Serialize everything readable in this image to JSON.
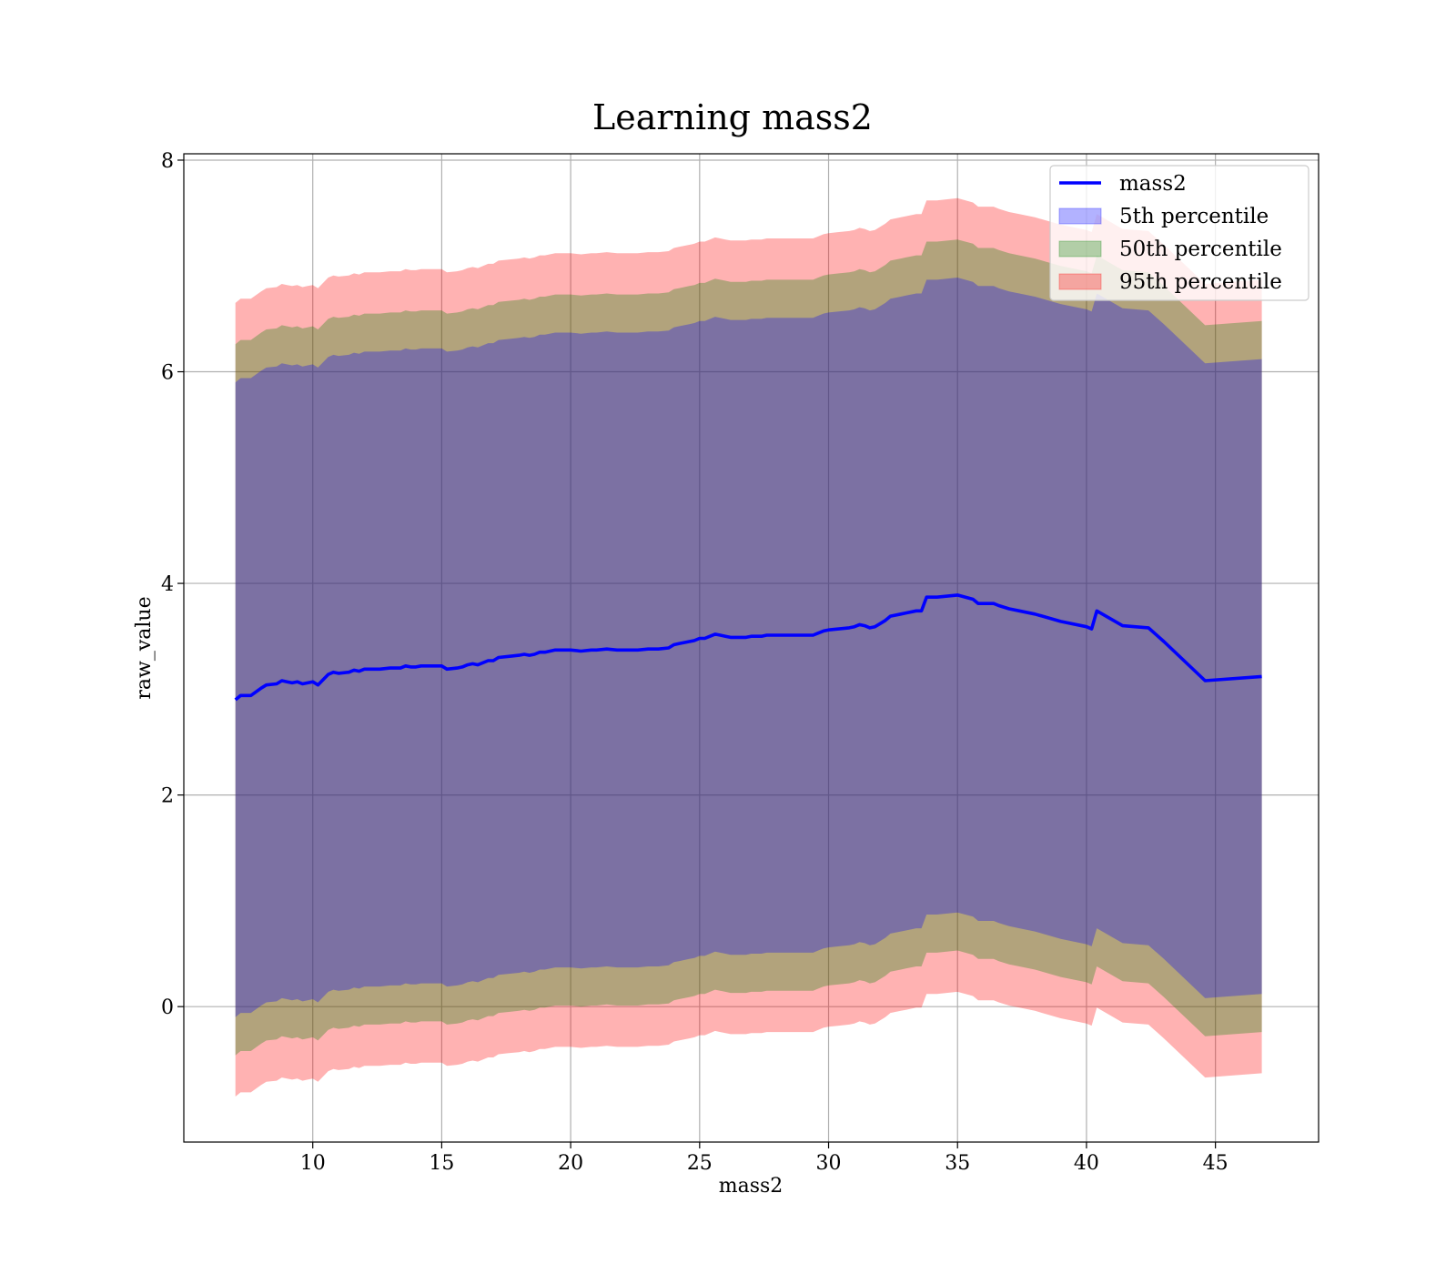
{
  "chart_data": {
    "type": "area",
    "title": "Learning mass2",
    "xlabel": "mass2",
    "ylabel": "raw_value",
    "xlim": [
      5,
      49
    ],
    "ylim": [
      -1.28,
      8.06
    ],
    "xticks": [
      10,
      15,
      20,
      25,
      30,
      35,
      40,
      45
    ],
    "yticks": [
      0,
      2,
      4,
      6,
      8
    ],
    "grid": true,
    "legend_position": "top-right",
    "legend": [
      {
        "label": "mass2",
        "kind": "line",
        "color": "#0000ff"
      },
      {
        "label": "5th percentile",
        "kind": "patch",
        "color": "#0000ff"
      },
      {
        "label": "50th percentile",
        "kind": "patch",
        "color": "#008000"
      },
      {
        "label": "95th percentile",
        "kind": "patch",
        "color": "#ff0000"
      }
    ],
    "x": [
      7.0,
      7.2,
      7.6,
      8.0,
      8.2,
      8.6,
      8.8,
      9.0,
      9.2,
      9.4,
      9.6,
      9.8,
      10.0,
      10.2,
      10.6,
      10.8,
      11.0,
      11.4,
      11.6,
      11.8,
      12.0,
      12.2,
      12.6,
      13.0,
      13.4,
      13.6,
      13.8,
      14.0,
      14.2,
      14.4,
      14.8,
      15.0,
      15.2,
      15.6,
      15.8,
      16.0,
      16.2,
      16.4,
      16.8,
      17.0,
      17.2,
      17.6,
      18.0,
      18.2,
      18.4,
      18.6,
      18.8,
      19.0,
      19.4,
      19.6,
      20.0,
      20.4,
      20.8,
      21.0,
      21.4,
      21.8,
      22.0,
      22.2,
      22.6,
      23.0,
      23.4,
      23.8,
      24.0,
      24.2,
      24.6,
      24.8,
      25.0,
      25.2,
      25.4,
      25.6,
      25.8,
      26.0,
      26.2,
      26.4,
      26.6,
      26.8,
      27.0,
      27.2,
      27.4,
      27.6,
      27.8,
      28.0,
      28.2,
      28.6,
      29.0,
      29.4,
      29.6,
      29.8,
      30.0,
      30.4,
      30.8,
      31.0,
      31.2,
      31.4,
      31.6,
      31.8,
      32.0,
      32.2,
      32.4,
      32.8,
      33.0,
      33.4,
      33.6,
      33.8,
      34.2,
      35.0,
      35.6,
      35.8,
      36.0,
      36.4,
      36.6,
      37.0,
      37.4,
      38.0,
      39.0,
      40.0,
      40.2,
      40.4,
      41.4,
      42.4,
      43.0,
      44.6,
      46.8
    ],
    "series": [
      {
        "name": "mass2",
        "values": [
          2.9,
          2.94,
          2.94,
          3.01,
          3.04,
          3.05,
          3.08,
          3.07,
          3.06,
          3.07,
          3.05,
          3.06,
          3.07,
          3.04,
          3.14,
          3.16,
          3.15,
          3.16,
          3.18,
          3.17,
          3.19,
          3.19,
          3.19,
          3.2,
          3.2,
          3.22,
          3.21,
          3.21,
          3.22,
          3.22,
          3.22,
          3.22,
          3.19,
          3.2,
          3.21,
          3.23,
          3.24,
          3.23,
          3.27,
          3.27,
          3.3,
          3.31,
          3.32,
          3.33,
          3.32,
          3.33,
          3.35,
          3.35,
          3.37,
          3.37,
          3.37,
          3.36,
          3.37,
          3.37,
          3.38,
          3.37,
          3.37,
          3.37,
          3.37,
          3.38,
          3.38,
          3.39,
          3.42,
          3.43,
          3.45,
          3.46,
          3.48,
          3.48,
          3.5,
          3.52,
          3.51,
          3.5,
          3.49,
          3.49,
          3.49,
          3.49,
          3.5,
          3.5,
          3.5,
          3.51,
          3.51,
          3.51,
          3.51,
          3.51,
          3.51,
          3.51,
          3.53,
          3.55,
          3.56,
          3.57,
          3.58,
          3.59,
          3.61,
          3.6,
          3.58,
          3.59,
          3.62,
          3.65,
          3.69,
          3.71,
          3.72,
          3.74,
          3.74,
          3.87,
          3.87,
          3.89,
          3.85,
          3.81,
          3.81,
          3.81,
          3.79,
          3.76,
          3.74,
          3.71,
          3.64,
          3.59,
          3.57,
          3.74,
          3.6,
          3.58,
          3.45,
          3.08,
          3.12
        ]
      },
      {
        "name": "5th percentile",
        "lower": [
          -0.1,
          -0.06,
          -0.06,
          0.01,
          0.04,
          0.05,
          0.08,
          0.07,
          0.06,
          0.07,
          0.05,
          0.06,
          0.07,
          0.04,
          0.14,
          0.16,
          0.15,
          0.16,
          0.18,
          0.17,
          0.19,
          0.19,
          0.19,
          0.2,
          0.2,
          0.22,
          0.21,
          0.21,
          0.22,
          0.22,
          0.22,
          0.22,
          0.19,
          0.2,
          0.21,
          0.23,
          0.24,
          0.23,
          0.27,
          0.27,
          0.3,
          0.31,
          0.32,
          0.33,
          0.32,
          0.33,
          0.35,
          0.35,
          0.37,
          0.37,
          0.37,
          0.36,
          0.37,
          0.37,
          0.38,
          0.37,
          0.37,
          0.37,
          0.37,
          0.38,
          0.38,
          0.39,
          0.42,
          0.43,
          0.45,
          0.46,
          0.48,
          0.48,
          0.5,
          0.52,
          0.51,
          0.5,
          0.49,
          0.49,
          0.49,
          0.49,
          0.5,
          0.5,
          0.5,
          0.51,
          0.51,
          0.51,
          0.51,
          0.51,
          0.51,
          0.51,
          0.53,
          0.55,
          0.56,
          0.57,
          0.58,
          0.59,
          0.61,
          0.6,
          0.58,
          0.59,
          0.62,
          0.65,
          0.69,
          0.71,
          0.72,
          0.74,
          0.74,
          0.87,
          0.87,
          0.89,
          0.85,
          0.81,
          0.81,
          0.81,
          0.79,
          0.76,
          0.74,
          0.71,
          0.64,
          0.59,
          0.57,
          0.74,
          0.6,
          0.58,
          0.45,
          0.08,
          0.12
        ],
        "upper": [
          5.9,
          5.94,
          5.94,
          6.01,
          6.04,
          6.05,
          6.08,
          6.07,
          6.06,
          6.07,
          6.05,
          6.06,
          6.07,
          6.04,
          6.14,
          6.16,
          6.15,
          6.16,
          6.18,
          6.17,
          6.19,
          6.19,
          6.19,
          6.2,
          6.2,
          6.22,
          6.21,
          6.21,
          6.22,
          6.22,
          6.22,
          6.22,
          6.19,
          6.2,
          6.21,
          6.23,
          6.24,
          6.23,
          6.27,
          6.27,
          6.3,
          6.31,
          6.32,
          6.33,
          6.32,
          6.33,
          6.35,
          6.35,
          6.37,
          6.37,
          6.37,
          6.36,
          6.37,
          6.37,
          6.38,
          6.37,
          6.37,
          6.37,
          6.37,
          6.38,
          6.38,
          6.39,
          6.42,
          6.43,
          6.45,
          6.46,
          6.48,
          6.48,
          6.5,
          6.52,
          6.51,
          6.5,
          6.49,
          6.49,
          6.49,
          6.49,
          6.5,
          6.5,
          6.5,
          6.51,
          6.51,
          6.51,
          6.51,
          6.51,
          6.51,
          6.51,
          6.53,
          6.55,
          6.56,
          6.57,
          6.58,
          6.59,
          6.61,
          6.6,
          6.58,
          6.59,
          6.62,
          6.65,
          6.69,
          6.71,
          6.72,
          6.74,
          6.74,
          6.87,
          6.87,
          6.89,
          6.85,
          6.81,
          6.81,
          6.81,
          6.79,
          6.76,
          6.74,
          6.71,
          6.64,
          6.59,
          6.57,
          6.74,
          6.6,
          6.58,
          6.45,
          6.08,
          6.12
        ]
      },
      {
        "name": "50th percentile",
        "lower": [
          -0.46,
          -0.42,
          -0.42,
          -0.35,
          -0.32,
          -0.31,
          -0.28,
          -0.29,
          -0.3,
          -0.29,
          -0.31,
          -0.3,
          -0.29,
          -0.32,
          -0.22,
          -0.2,
          -0.21,
          -0.2,
          -0.18,
          -0.19,
          -0.17,
          -0.17,
          -0.17,
          -0.16,
          -0.16,
          -0.14,
          -0.15,
          -0.15,
          -0.14,
          -0.14,
          -0.14,
          -0.14,
          -0.17,
          -0.16,
          -0.15,
          -0.13,
          -0.12,
          -0.13,
          -0.09,
          -0.09,
          -0.06,
          -0.05,
          -0.04,
          -0.03,
          -0.04,
          -0.03,
          -0.01,
          -0.01,
          0.01,
          0.01,
          0.01,
          0.0,
          0.01,
          0.01,
          0.02,
          0.01,
          0.01,
          0.01,
          0.01,
          0.02,
          0.02,
          0.03,
          0.06,
          0.07,
          0.09,
          0.1,
          0.12,
          0.12,
          0.14,
          0.16,
          0.15,
          0.14,
          0.13,
          0.13,
          0.13,
          0.13,
          0.14,
          0.14,
          0.14,
          0.15,
          0.15,
          0.15,
          0.15,
          0.15,
          0.15,
          0.15,
          0.17,
          0.19,
          0.2,
          0.21,
          0.22,
          0.23,
          0.25,
          0.24,
          0.22,
          0.23,
          0.26,
          0.29,
          0.33,
          0.35,
          0.36,
          0.38,
          0.38,
          0.51,
          0.51,
          0.53,
          0.49,
          0.45,
          0.45,
          0.45,
          0.43,
          0.4,
          0.38,
          0.35,
          0.28,
          0.23,
          0.21,
          0.38,
          0.24,
          0.22,
          0.09,
          -0.28,
          -0.24
        ],
        "upper": [
          6.26,
          6.3,
          6.3,
          6.37,
          6.4,
          6.41,
          6.44,
          6.43,
          6.42,
          6.43,
          6.41,
          6.42,
          6.43,
          6.4,
          6.5,
          6.52,
          6.51,
          6.52,
          6.54,
          6.53,
          6.55,
          6.55,
          6.55,
          6.56,
          6.56,
          6.58,
          6.57,
          6.57,
          6.58,
          6.58,
          6.58,
          6.58,
          6.55,
          6.56,
          6.57,
          6.59,
          6.6,
          6.59,
          6.63,
          6.63,
          6.66,
          6.67,
          6.68,
          6.69,
          6.68,
          6.69,
          6.71,
          6.71,
          6.73,
          6.73,
          6.73,
          6.72,
          6.73,
          6.73,
          6.74,
          6.73,
          6.73,
          6.73,
          6.73,
          6.74,
          6.74,
          6.75,
          6.78,
          6.79,
          6.81,
          6.82,
          6.84,
          6.84,
          6.86,
          6.88,
          6.87,
          6.86,
          6.85,
          6.85,
          6.85,
          6.85,
          6.86,
          6.86,
          6.86,
          6.87,
          6.87,
          6.87,
          6.87,
          6.87,
          6.87,
          6.87,
          6.89,
          6.91,
          6.92,
          6.93,
          6.94,
          6.95,
          6.97,
          6.96,
          6.94,
          6.95,
          6.98,
          7.01,
          7.05,
          7.07,
          7.08,
          7.1,
          7.1,
          7.23,
          7.23,
          7.25,
          7.21,
          7.17,
          7.17,
          7.17,
          7.15,
          7.12,
          7.1,
          7.07,
          7.0,
          6.95,
          6.93,
          7.1,
          6.96,
          6.94,
          6.81,
          6.44,
          6.48
        ]
      },
      {
        "name": "95th percentile",
        "lower": [
          -0.85,
          -0.81,
          -0.81,
          -0.74,
          -0.71,
          -0.7,
          -0.67,
          -0.68,
          -0.69,
          -0.68,
          -0.7,
          -0.69,
          -0.68,
          -0.71,
          -0.61,
          -0.59,
          -0.6,
          -0.59,
          -0.57,
          -0.58,
          -0.56,
          -0.56,
          -0.56,
          -0.55,
          -0.55,
          -0.53,
          -0.54,
          -0.54,
          -0.53,
          -0.53,
          -0.53,
          -0.53,
          -0.56,
          -0.55,
          -0.54,
          -0.52,
          -0.51,
          -0.52,
          -0.48,
          -0.48,
          -0.45,
          -0.44,
          -0.43,
          -0.42,
          -0.43,
          -0.42,
          -0.4,
          -0.4,
          -0.38,
          -0.38,
          -0.38,
          -0.39,
          -0.38,
          -0.38,
          -0.37,
          -0.38,
          -0.38,
          -0.38,
          -0.38,
          -0.37,
          -0.37,
          -0.36,
          -0.33,
          -0.32,
          -0.3,
          -0.29,
          -0.27,
          -0.27,
          -0.25,
          -0.23,
          -0.24,
          -0.25,
          -0.26,
          -0.26,
          -0.26,
          -0.26,
          -0.25,
          -0.25,
          -0.25,
          -0.24,
          -0.24,
          -0.24,
          -0.24,
          -0.24,
          -0.24,
          -0.24,
          -0.22,
          -0.2,
          -0.19,
          -0.18,
          -0.17,
          -0.16,
          -0.14,
          -0.15,
          -0.17,
          -0.16,
          -0.13,
          -0.1,
          -0.06,
          -0.04,
          -0.03,
          -0.01,
          -0.01,
          0.12,
          0.12,
          0.14,
          0.1,
          0.06,
          0.06,
          0.06,
          0.04,
          0.01,
          -0.01,
          -0.04,
          -0.11,
          -0.16,
          -0.18,
          -0.01,
          -0.15,
          -0.17,
          -0.3,
          -0.67,
          -0.63
        ],
        "upper": [
          6.65,
          6.69,
          6.69,
          6.76,
          6.79,
          6.8,
          6.83,
          6.82,
          6.81,
          6.82,
          6.8,
          6.81,
          6.82,
          6.79,
          6.89,
          6.91,
          6.9,
          6.91,
          6.93,
          6.92,
          6.94,
          6.94,
          6.94,
          6.95,
          6.95,
          6.97,
          6.96,
          6.96,
          6.97,
          6.97,
          6.97,
          6.97,
          6.94,
          6.95,
          6.96,
          6.98,
          6.99,
          6.98,
          7.02,
          7.02,
          7.05,
          7.06,
          7.07,
          7.08,
          7.07,
          7.08,
          7.1,
          7.1,
          7.12,
          7.12,
          7.12,
          7.11,
          7.12,
          7.12,
          7.13,
          7.12,
          7.12,
          7.12,
          7.12,
          7.13,
          7.13,
          7.14,
          7.17,
          7.18,
          7.2,
          7.21,
          7.23,
          7.23,
          7.25,
          7.27,
          7.26,
          7.25,
          7.24,
          7.24,
          7.24,
          7.24,
          7.25,
          7.25,
          7.25,
          7.26,
          7.26,
          7.26,
          7.26,
          7.26,
          7.26,
          7.26,
          7.28,
          7.3,
          7.31,
          7.32,
          7.33,
          7.34,
          7.36,
          7.35,
          7.33,
          7.34,
          7.37,
          7.4,
          7.44,
          7.46,
          7.47,
          7.49,
          7.49,
          7.62,
          7.62,
          7.64,
          7.6,
          7.56,
          7.56,
          7.56,
          7.54,
          7.51,
          7.49,
          7.46,
          7.39,
          7.34,
          7.32,
          7.49,
          7.35,
          7.33,
          7.2,
          6.83,
          6.87
        ]
      }
    ]
  }
}
